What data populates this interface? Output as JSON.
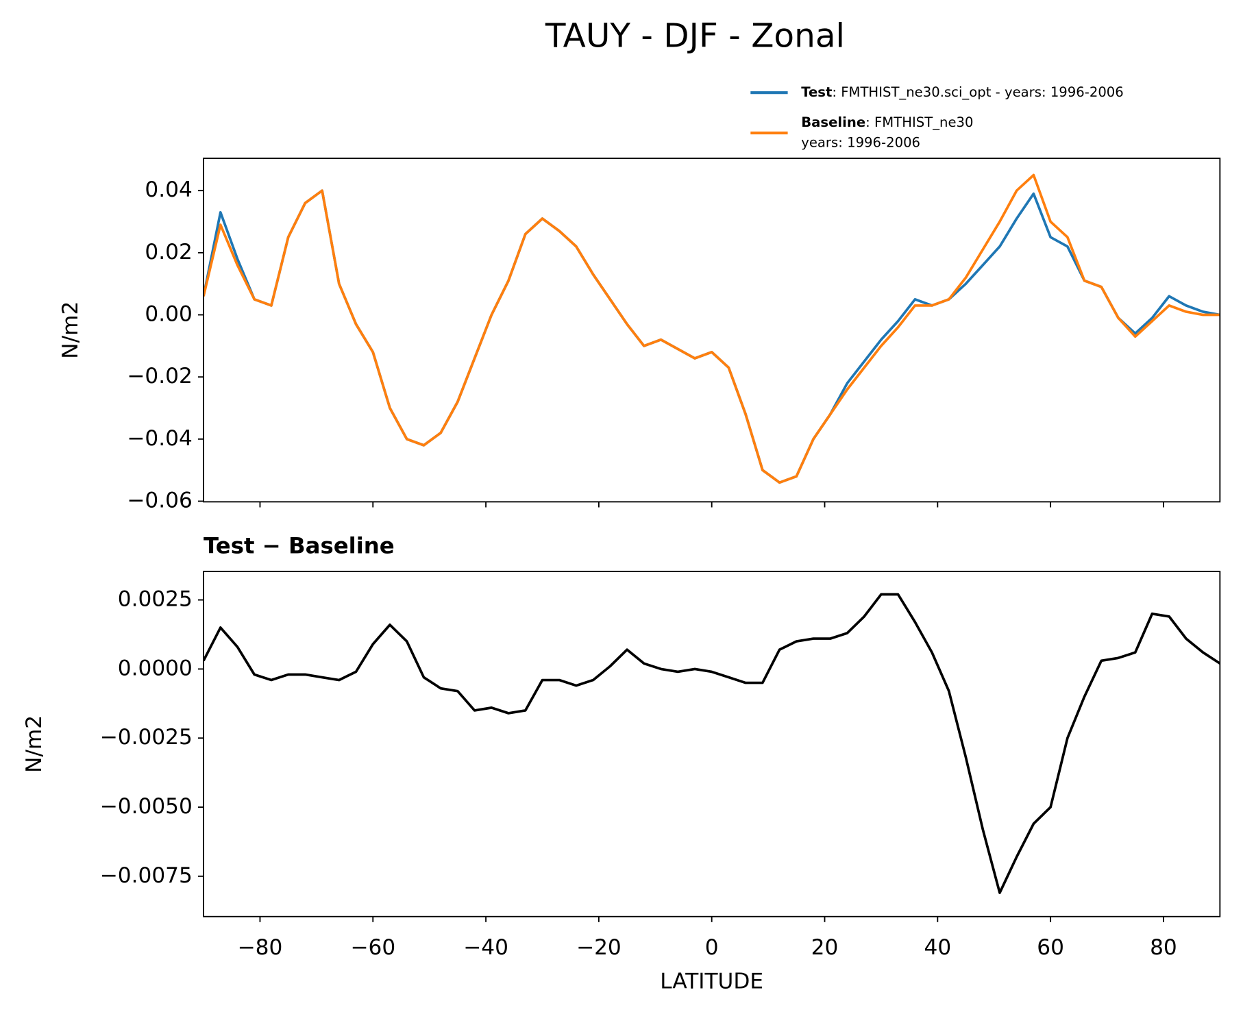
{
  "chart_data": [
    {
      "type": "line",
      "title": "TAUY - DJF - Zonal",
      "ylabel": "N/m2",
      "xlim": [
        -90,
        90
      ],
      "ylim": [
        -0.0602,
        0.0504
      ],
      "xticks": [
        {
          "value": -80,
          "label": "−80"
        },
        {
          "value": -60,
          "label": "−60"
        },
        {
          "value": -40,
          "label": "−40"
        },
        {
          "value": -20,
          "label": "−20"
        },
        0,
        20,
        40,
        60,
        80
      ],
      "yticks": [
        {
          "value": -0.06,
          "label": "−0.06"
        },
        {
          "value": -0.04,
          "label": "−0.04"
        },
        {
          "value": -0.02,
          "label": "−0.02"
        },
        {
          "value": 0,
          "label": "0.00"
        },
        0.02,
        0.04
      ],
      "x": [
        -90,
        -87,
        -84,
        -81,
        -78,
        -75,
        -72,
        -69,
        -66,
        -63,
        -60,
        -57,
        -54,
        -51,
        -48,
        -45,
        -42,
        -39,
        -36,
        -33,
        -30,
        -27,
        -24,
        -21,
        -18,
        -15,
        -12,
        -9,
        -6,
        -3,
        0,
        3,
        6,
        9,
        12,
        15,
        18,
        21,
        24,
        27,
        30,
        33,
        36,
        39,
        42,
        45,
        48,
        51,
        54,
        57,
        60,
        63,
        66,
        69,
        72,
        75,
        78,
        81,
        84,
        87,
        90
      ],
      "series": [
        {
          "name": "Test",
          "description": [
            ": FMTHIST_ne30.sci_opt - years: 1996-2006"
          ],
          "color": "#1f77b4",
          "values": [
            0.006,
            0.033,
            0.018,
            0.005,
            0.003,
            0.025,
            0.036,
            0.04,
            0.01,
            -0.003,
            -0.012,
            -0.03,
            -0.04,
            -0.042,
            -0.038,
            -0.028,
            -0.014,
            0.0,
            0.011,
            0.026,
            0.031,
            0.027,
            0.022,
            0.013,
            0.005,
            -0.003,
            -0.01,
            -0.008,
            -0.011,
            -0.014,
            -0.012,
            -0.017,
            -0.032,
            -0.05,
            -0.054,
            -0.052,
            -0.04,
            -0.032,
            -0.022,
            -0.015,
            -0.008,
            -0.002,
            0.005,
            0.003,
            0.005,
            0.01,
            0.016,
            0.022,
            0.031,
            0.039,
            0.025,
            0.022,
            0.011,
            0.009,
            -0.001,
            -0.006,
            -0.001,
            0.006,
            0.003,
            0.001,
            0.0
          ]
        },
        {
          "name": "Baseline",
          "description": [
            ": FMTHIST_ne30",
            "years: 1996-2006"
          ],
          "color": "#ff7f0e",
          "values": [
            0.006,
            0.029,
            0.016,
            0.005,
            0.003,
            0.025,
            0.036,
            0.04,
            0.01,
            -0.003,
            -0.012,
            -0.03,
            -0.04,
            -0.042,
            -0.038,
            -0.028,
            -0.014,
            0.0,
            0.011,
            0.026,
            0.031,
            0.027,
            0.022,
            0.013,
            0.005,
            -0.003,
            -0.01,
            -0.008,
            -0.011,
            -0.014,
            -0.012,
            -0.017,
            -0.032,
            -0.05,
            -0.054,
            -0.052,
            -0.04,
            -0.032,
            -0.024,
            -0.017,
            -0.01,
            -0.004,
            0.003,
            0.003,
            0.005,
            0.012,
            0.021,
            0.03,
            0.04,
            0.045,
            0.03,
            0.025,
            0.011,
            0.009,
            -0.001,
            -0.007,
            -0.002,
            0.003,
            0.001,
            0.0,
            0.0
          ]
        }
      ]
    },
    {
      "type": "line",
      "title": "Test − Baseline",
      "ylabel": "N/m2",
      "xlabel": "LATITUDE",
      "xlim": [
        -90,
        90
      ],
      "ylim": [
        -0.00896,
        0.00353
      ],
      "xticks": [
        {
          "value": -80,
          "label": "−80"
        },
        {
          "value": -60,
          "label": "−60"
        },
        {
          "value": -40,
          "label": "−40"
        },
        {
          "value": -20,
          "label": "−20"
        },
        0,
        20,
        40,
        60,
        80
      ],
      "yticks": [
        {
          "value": -0.0075,
          "label": "−0.0075"
        },
        {
          "value": -0.005,
          "label": "−0.0050"
        },
        {
          "value": -0.0025,
          "label": "−0.0025"
        },
        {
          "value": 0,
          "label": "0.0000"
        },
        0.0025
      ],
      "x": [
        -90,
        -87,
        -84,
        -81,
        -78,
        -75,
        -72,
        -69,
        -66,
        -63,
        -60,
        -57,
        -54,
        -51,
        -48,
        -45,
        -42,
        -39,
        -36,
        -33,
        -30,
        -27,
        -24,
        -21,
        -18,
        -15,
        -12,
        -9,
        -6,
        -3,
        0,
        3,
        6,
        9,
        12,
        15,
        18,
        21,
        24,
        27,
        30,
        33,
        36,
        39,
        42,
        45,
        48,
        51,
        54,
        57,
        60,
        63,
        66,
        69,
        72,
        75,
        78,
        81,
        84,
        87,
        90
      ],
      "series": [
        {
          "color": "#000000",
          "values": [
            0.0003,
            0.0015,
            0.0008,
            -0.0002,
            -0.0004,
            -0.0002,
            -0.0002,
            -0.0003,
            -0.0004,
            -0.0001,
            0.0009,
            0.0016,
            0.001,
            -0.0003,
            -0.0007,
            -0.0008,
            -0.0015,
            -0.0014,
            -0.0016,
            -0.0015,
            -0.0004,
            -0.0004,
            -0.0006,
            -0.0004,
            0.0001,
            0.0007,
            0.0002,
            0.0,
            -0.0001,
            0.0,
            -0.0001,
            -0.0003,
            -0.0005,
            -0.0005,
            0.0007,
            0.001,
            0.0011,
            0.0011,
            0.0013,
            0.0019,
            0.0027,
            0.0027,
            0.0017,
            0.0006,
            -0.0008,
            -0.0032,
            -0.0058,
            -0.0081,
            -0.0068,
            -0.0056,
            -0.005,
            -0.0025,
            -0.001,
            0.0003,
            0.0004,
            0.0006,
            0.002,
            0.0019,
            0.0011,
            0.0006,
            0.0002
          ]
        }
      ]
    }
  ]
}
